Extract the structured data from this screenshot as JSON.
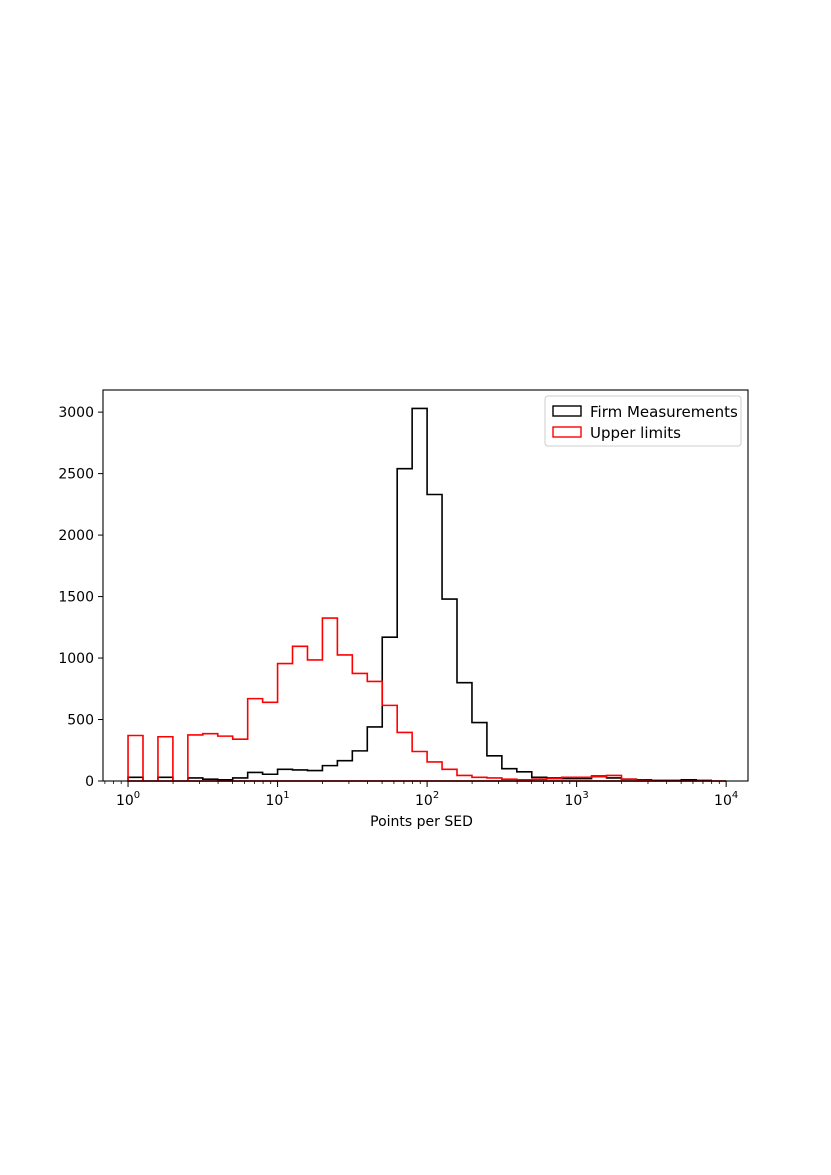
{
  "chart_data": {
    "type": "histogram",
    "title": "",
    "xlabel": "Points per SED",
    "ylabel": "",
    "x_scale": "log",
    "xlim": [
      0.68,
      14.0
    ],
    "ylim": [
      0,
      3180
    ],
    "y_ticks": [
      0,
      500,
      1000,
      1500,
      2000,
      2500,
      3000
    ],
    "x_ticks": [
      {
        "value": 1,
        "base": "10",
        "exp": "0"
      },
      {
        "value": 10,
        "base": "10",
        "exp": "1"
      },
      {
        "value": 100,
        "base": "10",
        "exp": "2"
      },
      {
        "value": 1000,
        "base": "10",
        "exp": "3"
      },
      {
        "value": 10000,
        "base": "10",
        "exp": "4"
      }
    ],
    "grid": false,
    "legend_position": "top-right",
    "bin_edges": [
      1.0,
      1.2589,
      1.5849,
      1.9953,
      2.5119,
      3.1623,
      3.9811,
      5.0119,
      6.3096,
      7.9433,
      10.0,
      12.589,
      15.849,
      19.953,
      25.119,
      31.623,
      39.811,
      50.119,
      63.096,
      79.433,
      100.0,
      125.89,
      158.49,
      199.53,
      251.19,
      316.23,
      398.11,
      501.19,
      630.96,
      794.33,
      1000.0,
      1258.9,
      1584.9,
      1995.3,
      2511.9,
      3162.3,
      3981.1,
      5011.9,
      6309.6,
      7943.3,
      10000.0
    ],
    "series": [
      {
        "name": "Firm Measurements",
        "color": "#000000",
        "values": [
          30,
          0,
          30,
          0,
          25,
          15,
          10,
          25,
          70,
          55,
          95,
          90,
          85,
          125,
          165,
          245,
          440,
          1170,
          2540,
          3030,
          2330,
          1480,
          800,
          475,
          205,
          100,
          75,
          30,
          25,
          20,
          20,
          40,
          25,
          15,
          10,
          5,
          5,
          10,
          5,
          0
        ]
      },
      {
        "name": "Upper limits",
        "color": "#ff0000",
        "values": [
          370,
          0,
          360,
          0,
          375,
          385,
          365,
          340,
          670,
          640,
          955,
          1095,
          985,
          1325,
          1025,
          875,
          810,
          615,
          395,
          240,
          155,
          95,
          45,
          30,
          25,
          15,
          10,
          15,
          20,
          30,
          30,
          35,
          45,
          15,
          5,
          0,
          0,
          0,
          0,
          0
        ]
      }
    ]
  }
}
